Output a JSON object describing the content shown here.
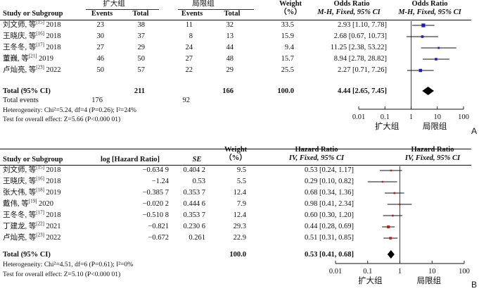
{
  "chart_data": [
    {
      "type": "forest",
      "panel": "A",
      "group_labels": {
        "experimental": "扩大组",
        "control": "局限组"
      },
      "headers": {
        "study": "Study or Subgroup",
        "events": "Events",
        "total": "Total",
        "weight": "Weight",
        "weight_unit": "（%）",
        "or_numeric_title": "Odds Ratio",
        "or_numeric_sub": "M-H, Fixed, 95% CI",
        "or_plot_title": "Odds Ratio",
        "or_plot_sub": "M-H, Fixed, 95% CI"
      },
      "studies": [
        {
          "name": "刘文师, 等",
          "ref": "[15]",
          "year": "2018",
          "exp_events": "23",
          "exp_total": "38",
          "ctl_events": "11",
          "ctl_total": "32",
          "weight": "33.5",
          "ci_text": "2.93 [1.10, 7.78]",
          "est": 2.93,
          "lo": 1.1,
          "hi": 7.78
        },
        {
          "name": "王晓庆, 等",
          "ref": "[16]",
          "year": "2018",
          "exp_events": "30",
          "exp_total": "37",
          "ctl_events": "8",
          "ctl_total": "13",
          "weight": "15.9",
          "ci_text": "2.68 [0.67, 10.73]",
          "est": 2.68,
          "lo": 0.67,
          "hi": 10.73
        },
        {
          "name": "王冬冬, 等",
          "ref": "[17]",
          "year": "2018",
          "exp_events": "27",
          "exp_total": "29",
          "ctl_events": "24",
          "ctl_total": "44",
          "weight": "9.4",
          "ci_text": "11.25 [2.38, 53.22]",
          "est": 11.25,
          "lo": 2.38,
          "hi": 53.22
        },
        {
          "name": "董巍, 等",
          "ref": "[21]",
          "year": "2019",
          "exp_events": "46",
          "exp_total": "50",
          "ctl_events": "27",
          "ctl_total": "48",
          "weight": "15.7",
          "ci_text": "8.94 [2.78, 28.82]",
          "est": 8.94,
          "lo": 2.78,
          "hi": 28.82
        },
        {
          "name": "卢灿亮, 等",
          "ref": "[23]",
          "year": "2022",
          "exp_events": "50",
          "exp_total": "57",
          "ctl_events": "22",
          "ctl_total": "29",
          "weight": "25.5",
          "ci_text": "2.27 [0.71, 7.26]",
          "est": 2.27,
          "lo": 0.71,
          "hi": 7.26
        }
      ],
      "total": {
        "label": "Total (95% CI)",
        "exp_total": "211",
        "ctl_total": "166",
        "weight": "100.0",
        "ci_text": "4.44 [2.65, 7.45]",
        "est": 4.44,
        "lo": 2.65,
        "hi": 7.45
      },
      "total_events": {
        "label": "Total events",
        "exp": "176",
        "ctl": "92"
      },
      "heterogeneity": "Heterogeneity: Chi²=5.24, df=4 (P=0.26); I²=24%",
      "overall_effect": "Test for overall effect: Z=5.66 (P<0.000 01)",
      "axis": {
        "scale": "log",
        "ticks": [
          0.01,
          0.1,
          1,
          10,
          100
        ],
        "tick_labels": [
          "0.01",
          "0.1",
          "1",
          "10",
          "100"
        ],
        "favours_left": "扩大组",
        "favours_right": "局限组"
      },
      "marker_color": "#1a1acc"
    },
    {
      "type": "forest",
      "panel": "B",
      "headers": {
        "study": "Study or Subgroup",
        "loghr": "log [Hazard Ratio]",
        "se": "SE",
        "weight": "Weight",
        "weight_unit": "（%）",
        "hr_numeric_title": "Hazard Ratio",
        "hr_numeric_sub": "IV, Fixed, 95% CI",
        "hr_plot_title": "Hazard Ratio",
        "hr_plot_sub": "IV, Fixed, 95% CI"
      },
      "studies": [
        {
          "name": "刘文师, 等",
          "ref": "[15]",
          "year": "2018",
          "loghr": "−0.634 9",
          "se": "0.404 2",
          "weight": "9.5",
          "ci_text": "0.53 [0.24, 1.17]",
          "est": 0.53,
          "lo": 0.24,
          "hi": 1.17
        },
        {
          "name": "王晓庆, 等",
          "ref": "[16]",
          "year": "2018",
          "loghr": "−1.24",
          "se": "0.53",
          "weight": "5.5",
          "ci_text": "0.29 [0.10, 0.82]",
          "est": 0.29,
          "lo": 0.1,
          "hi": 0.82
        },
        {
          "name": "张大伟, 等",
          "ref": "[18]",
          "year": "2019",
          "loghr": "−0.385 7",
          "se": "0.353 7",
          "weight": "12.4",
          "ci_text": "0.68 [0.34, 1.36]",
          "est": 0.68,
          "lo": 0.34,
          "hi": 1.36
        },
        {
          "name": "戴伟, 等",
          "ref": "[19]",
          "year": "2020",
          "loghr": "−0.020 2",
          "se": "0.444 6",
          "weight": "7.9",
          "ci_text": "0.98 [0.41, 2.34]",
          "est": 0.98,
          "lo": 0.41,
          "hi": 2.34
        },
        {
          "name": "王冬冬, 等",
          "ref": "[17]",
          "year": "2018",
          "loghr": "−0.510 8",
          "se": "0.353 7",
          "weight": "12.4",
          "ci_text": "0.60 [0.30, 1.20]",
          "est": 0.6,
          "lo": 0.3,
          "hi": 1.2
        },
        {
          "name": "丁建龙, 等",
          "ref": "[22]",
          "year": "2021",
          "loghr": "−0.821",
          "se": "0.230 6",
          "weight": "29.3",
          "ci_text": "0.44 [0.28, 0.69]",
          "est": 0.44,
          "lo": 0.28,
          "hi": 0.69
        },
        {
          "name": "卢灿亮, 等",
          "ref": "[23]",
          "year": "2022",
          "loghr": "−0.672",
          "se": "0.261",
          "weight": "22.9",
          "ci_text": "0.51 [0.31, 0.85]",
          "est": 0.51,
          "lo": 0.31,
          "hi": 0.85
        }
      ],
      "total": {
        "label": "Total (95% CI)",
        "weight": "100.0",
        "ci_text": "0.53 [0.41, 0.68]",
        "est": 0.53,
        "lo": 0.41,
        "hi": 0.68
      },
      "heterogeneity": "Heterogeneity: Chi²=4.51, df=6 (P=0.61); I²=0%",
      "overall_effect": "Test for overall effect: Z=5.10 (P<0.000 01)",
      "axis": {
        "scale": "log",
        "ticks": [
          0.01,
          0.1,
          1,
          10,
          100
        ],
        "tick_labels": [
          "0.01",
          "0.1",
          "1",
          "10",
          "100"
        ],
        "favours_left": "扩大组",
        "favours_right": "局限组"
      },
      "marker_color": "#c41a1a"
    }
  ]
}
